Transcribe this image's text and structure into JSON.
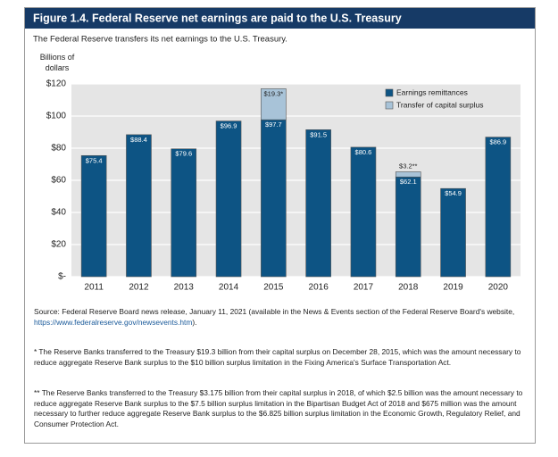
{
  "chart_data": {
    "type": "bar",
    "stacked": true,
    "title": "Figure 1.4. Federal Reserve net earnings are paid to the U.S. Treasury",
    "subtitle": "The Federal Reserve transfers its net earnings to the U.S. Treasury.",
    "y_label": "Billions of dollars",
    "categories": [
      "2011",
      "2012",
      "2013",
      "2014",
      "2015",
      "2016",
      "2017",
      "2018",
      "2019",
      "2020"
    ],
    "series": [
      {
        "name": "Earnings remittances",
        "color": "#0d5484",
        "values": [
          75.4,
          88.4,
          79.6,
          96.9,
          97.7,
          91.5,
          80.6,
          62.1,
          54.9,
          86.9
        ],
        "value_labels": [
          "$75.4",
          "$88.4",
          "$79.6",
          "$96.9",
          "$97.7",
          "$91.5",
          "$80.6",
          "$62.1",
          "$54.9",
          "$86.9"
        ]
      },
      {
        "name": "Transfer of capital surplus",
        "color": "#a8c3d8",
        "values": [
          null,
          null,
          null,
          null,
          19.3,
          null,
          null,
          3.2,
          null,
          null
        ],
        "value_labels": [
          null,
          null,
          null,
          null,
          "$19.3*",
          null,
          null,
          "$3.2**",
          null,
          null
        ]
      }
    ],
    "ylim": [
      0,
      120
    ],
    "yticks": [
      {
        "value": 0,
        "label": "$-"
      },
      {
        "value": 20,
        "label": "$20"
      },
      {
        "value": 40,
        "label": "$40"
      },
      {
        "value": 60,
        "label": "$60"
      },
      {
        "value": 80,
        "label": "$80"
      },
      {
        "value": 100,
        "label": "$100"
      },
      {
        "value": 120,
        "label": "$120"
      }
    ],
    "grid": true,
    "legend": "top-right"
  },
  "notes": {
    "source_before": "Source: Federal Reserve Board news release, January 11, 2021 (available in the News & Events section of the Federal Reserve Board's website, ",
    "source_link": "https://www.federalreserve.gov/newsevents.htm",
    "source_after": ").",
    "note1": "* The Reserve Banks transferred to the Treasury $19.3 billion from their capital surplus on December 28, 2015, which was the amount necessary to reduce aggregate Reserve Bank surplus to the $10 billion surplus limitation in the Fixing America's Surface Transportation Act.",
    "note2": "** The Reserve Banks transferred to the Treasury $3.175 billion from their capital surplus in 2018, of which $2.5 billion was the amount necessary to reduce aggregate Reserve Bank surplus to the $7.5 billion surplus limitation in the Bipartisan Budget Act of 2018 and $675 million was the amount necessary to further reduce aggregate Reserve Bank surplus to the $6.825 billion surplus limitation in the Economic Growth, Regulatory Relief, and Consumer Protection Act."
  }
}
